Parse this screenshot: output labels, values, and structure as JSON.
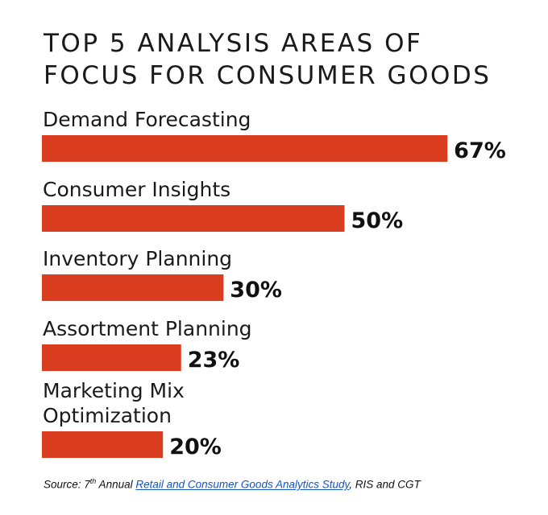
{
  "title_line1": "TOP 5 ANALYSIS AREAS OF",
  "title_line2": "FOCUS FOR CONSUMER GOODS",
  "colors": {
    "bar": "#d93c1e",
    "text": "#111111"
  },
  "chart_data": {
    "type": "bar",
    "orientation": "horizontal",
    "categories": [
      [
        "Demand Forecasting"
      ],
      [
        "Consumer Insights"
      ],
      [
        "Inventory Planning"
      ],
      [
        "Assortment Planning"
      ],
      [
        "Marketing Mix",
        "Optimization"
      ]
    ],
    "values": [
      67,
      50,
      30,
      23,
      20
    ],
    "value_labels": [
      "67%",
      "50%",
      "30%",
      "23%",
      "20%"
    ],
    "xlim": [
      0,
      100
    ],
    "grid": false,
    "legend": "none"
  },
  "source": {
    "prefix": "Source: 7",
    "sup": "th",
    "annual": " Annual ",
    "link_text": "Retail and Consumer Goods Analytics Study",
    "suffix": ", RIS and CGT"
  }
}
